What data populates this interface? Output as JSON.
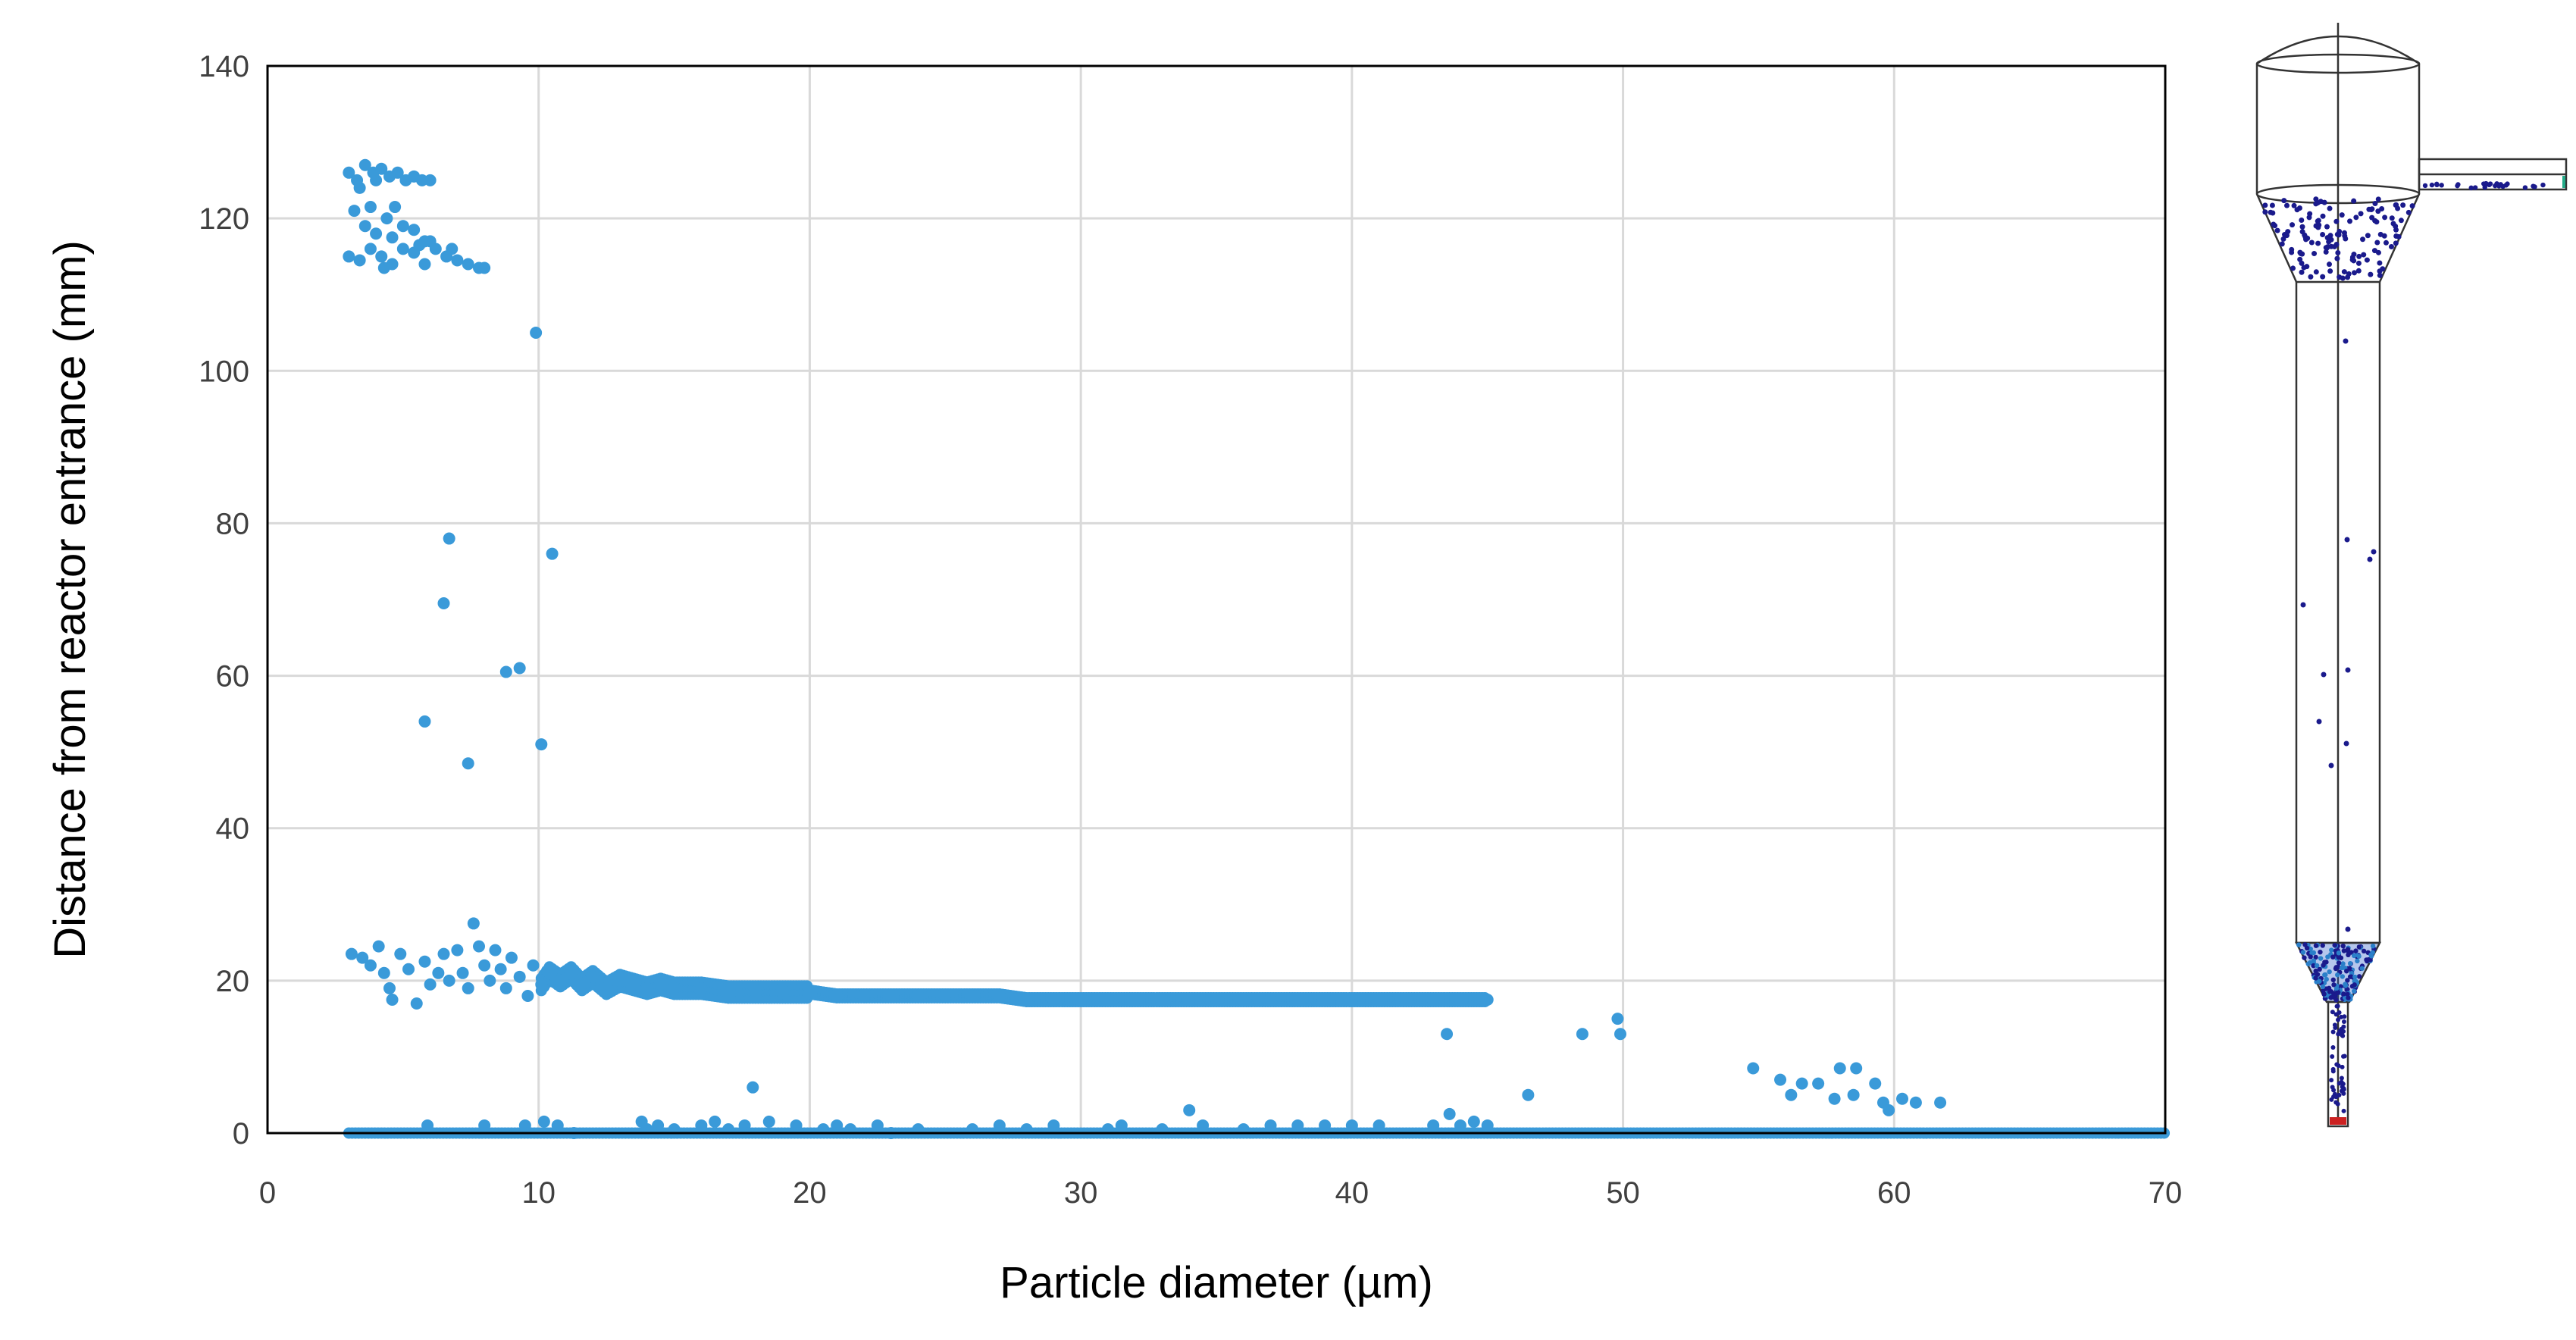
{
  "chart_data": {
    "type": "scatter",
    "xlabel": "Particle diameter (µm)",
    "ylabel": "Distance from reactor entrance (mm)",
    "xlim": [
      0,
      70
    ],
    "ylim": [
      0,
      140
    ],
    "x_ticks": [
      "0",
      "10",
      "20",
      "30",
      "40",
      "50",
      "60",
      "70"
    ],
    "y_ticks": [
      "0",
      "20",
      "40",
      "60",
      "80",
      "100",
      "120",
      "140"
    ],
    "grid": true,
    "marker_color": "#3a9ad9",
    "series": [
      {
        "values_note": "",
        "points": [
          [
            3.0,
            126
          ],
          [
            3.3,
            125
          ],
          [
            3.6,
            127
          ],
          [
            3.9,
            126
          ],
          [
            4.2,
            126.5
          ],
          [
            4.5,
            125.5
          ],
          [
            4.8,
            126
          ],
          [
            5.1,
            125
          ],
          [
            5.4,
            125.5
          ],
          [
            5.7,
            125
          ],
          [
            6.0,
            125
          ],
          [
            3.4,
            124
          ],
          [
            4.0,
            125
          ],
          [
            3.2,
            121
          ],
          [
            3.6,
            119
          ],
          [
            4.0,
            118
          ],
          [
            4.4,
            120
          ],
          [
            4.7,
            121.5
          ],
          [
            5.0,
            119
          ],
          [
            5.4,
            118.5
          ],
          [
            5.8,
            117
          ],
          [
            3.8,
            121.5
          ],
          [
            4.6,
            117.5
          ],
          [
            3.0,
            115
          ],
          [
            3.4,
            114.5
          ],
          [
            3.8,
            116
          ],
          [
            4.2,
            115
          ],
          [
            4.6,
            114
          ],
          [
            5.0,
            116
          ],
          [
            5.4,
            115.5
          ],
          [
            5.8,
            114
          ],
          [
            6.2,
            116
          ],
          [
            6.6,
            115
          ],
          [
            7.0,
            114.5
          ],
          [
            7.4,
            114
          ],
          [
            7.8,
            113.5
          ],
          [
            8.0,
            113.5
          ],
          [
            6.0,
            117
          ],
          [
            6.8,
            116
          ],
          [
            4.3,
            113.5
          ],
          [
            5.6,
            116.5
          ],
          [
            9.9,
            105
          ],
          [
            6.7,
            78
          ],
          [
            10.5,
            76
          ],
          [
            6.5,
            69.5
          ],
          [
            8.8,
            60.5
          ],
          [
            9.3,
            61
          ],
          [
            5.8,
            54
          ],
          [
            10.1,
            51
          ],
          [
            7.4,
            48.5
          ],
          [
            3.1,
            23.5
          ],
          [
            3.5,
            23
          ],
          [
            3.8,
            22
          ],
          [
            4.1,
            24.5
          ],
          [
            4.3,
            21
          ],
          [
            4.5,
            19
          ],
          [
            4.6,
            17.5
          ],
          [
            4.9,
            23.5
          ],
          [
            5.2,
            21.5
          ],
          [
            5.5,
            17
          ],
          [
            5.8,
            22.5
          ],
          [
            6.0,
            19.5
          ],
          [
            6.3,
            21
          ],
          [
            6.5,
            23.5
          ],
          [
            6.7,
            20
          ],
          [
            7.0,
            24
          ],
          [
            7.2,
            21
          ],
          [
            7.4,
            19
          ],
          [
            7.6,
            27.5
          ],
          [
            7.8,
            24.5
          ],
          [
            8.0,
            22
          ],
          [
            8.2,
            20
          ],
          [
            8.4,
            24
          ],
          [
            8.6,
            21.5
          ],
          [
            8.8,
            19
          ],
          [
            9.0,
            23
          ],
          [
            9.3,
            20.5
          ],
          [
            9.6,
            18
          ],
          [
            9.8,
            22
          ],
          [
            10.1,
            19.5
          ],
          [
            10.4,
            21
          ],
          [
            10.8,
            20
          ],
          [
            11.2,
            21
          ],
          [
            11.6,
            19.5
          ],
          [
            12.0,
            20.5
          ],
          [
            12.5,
            19
          ],
          [
            13.0,
            20
          ],
          [
            13.5,
            19.5
          ],
          [
            14.0,
            19
          ],
          [
            14.5,
            19.5
          ],
          [
            15.0,
            19
          ],
          [
            16.0,
            19
          ],
          [
            17.0,
            18.5
          ],
          [
            18.0,
            18.5
          ],
          [
            19.0,
            18.5
          ],
          [
            20.0,
            18.5
          ],
          [
            21.0,
            18
          ],
          [
            22.0,
            18
          ],
          [
            23.0,
            18
          ],
          [
            24.0,
            18
          ],
          [
            25.0,
            18
          ],
          [
            26.0,
            18
          ],
          [
            27.0,
            18
          ],
          [
            28.0,
            17.5
          ],
          [
            29.0,
            17.5
          ],
          [
            30.0,
            17.5
          ],
          [
            31.0,
            17.5
          ],
          [
            32.0,
            17.5
          ],
          [
            33.0,
            17.5
          ],
          [
            34.0,
            17.5
          ],
          [
            35.0,
            17.5
          ],
          [
            36.0,
            17.5
          ],
          [
            37.0,
            17.5
          ],
          [
            38.0,
            17.5
          ],
          [
            39.0,
            17.5
          ],
          [
            40.0,
            17.5
          ],
          [
            41.0,
            17.5
          ],
          [
            42.0,
            17.5
          ],
          [
            43.0,
            17.5
          ],
          [
            44.0,
            17.5
          ],
          [
            45.0,
            17.5
          ],
          [
            43.5,
            13
          ],
          [
            48.5,
            13
          ],
          [
            49.8,
            15
          ],
          [
            49.9,
            13
          ],
          [
            46.5,
            5
          ],
          [
            17.9,
            6
          ],
          [
            34.0,
            3
          ],
          [
            43.6,
            2.5
          ],
          [
            54.8,
            8.5
          ],
          [
            55.8,
            7
          ],
          [
            56.6,
            6.5
          ],
          [
            57.2,
            6.5
          ],
          [
            56.2,
            5
          ],
          [
            57.8,
            4.5
          ],
          [
            58.0,
            8.5
          ],
          [
            58.6,
            8.5
          ],
          [
            59.3,
            6.5
          ],
          [
            58.5,
            5
          ],
          [
            59.6,
            4
          ],
          [
            59.8,
            3
          ],
          [
            60.3,
            4.5
          ],
          [
            60.8,
            4
          ],
          [
            61.7,
            4
          ],
          [
            5.9,
            1
          ],
          [
            8.0,
            1
          ],
          [
            9.5,
            1
          ],
          [
            10.2,
            1.5
          ],
          [
            10.7,
            1
          ],
          [
            11.3,
            0
          ],
          [
            13.8,
            1.5
          ],
          [
            14.0,
            0.5
          ],
          [
            14.4,
            1
          ],
          [
            15.0,
            0.5
          ],
          [
            16.0,
            1
          ],
          [
            16.5,
            1.5
          ],
          [
            17.0,
            0.5
          ],
          [
            17.6,
            1
          ],
          [
            18.5,
            1.5
          ],
          [
            19.5,
            1
          ],
          [
            20.5,
            0.5
          ],
          [
            21.0,
            1
          ],
          [
            21.5,
            0.5
          ],
          [
            22.5,
            1
          ],
          [
            23.0,
            0
          ],
          [
            24.0,
            0.5
          ],
          [
            26.0,
            0.5
          ],
          [
            27.0,
            1
          ],
          [
            28.0,
            0.5
          ],
          [
            29.0,
            1
          ],
          [
            31.0,
            0.5
          ],
          [
            31.5,
            1
          ],
          [
            33.0,
            0.5
          ],
          [
            34.5,
            1
          ],
          [
            36.0,
            0.5
          ],
          [
            37.0,
            1
          ],
          [
            38.0,
            1
          ],
          [
            39.0,
            1
          ],
          [
            40.0,
            1
          ],
          [
            41.0,
            1
          ],
          [
            43.0,
            1
          ],
          [
            44.0,
            1
          ],
          [
            44.5,
            1.5
          ],
          [
            45.0,
            1
          ]
        ],
        "zero_band": {
          "x_from": 3.0,
          "x_to": 70.0,
          "y": 0
        }
      }
    ]
  },
  "reactor_schematic": {
    "particle_color": "#1a1a8c",
    "accent_colors": [
      "#2a7fc9",
      "#cc2222",
      "#22aa88"
    ]
  }
}
